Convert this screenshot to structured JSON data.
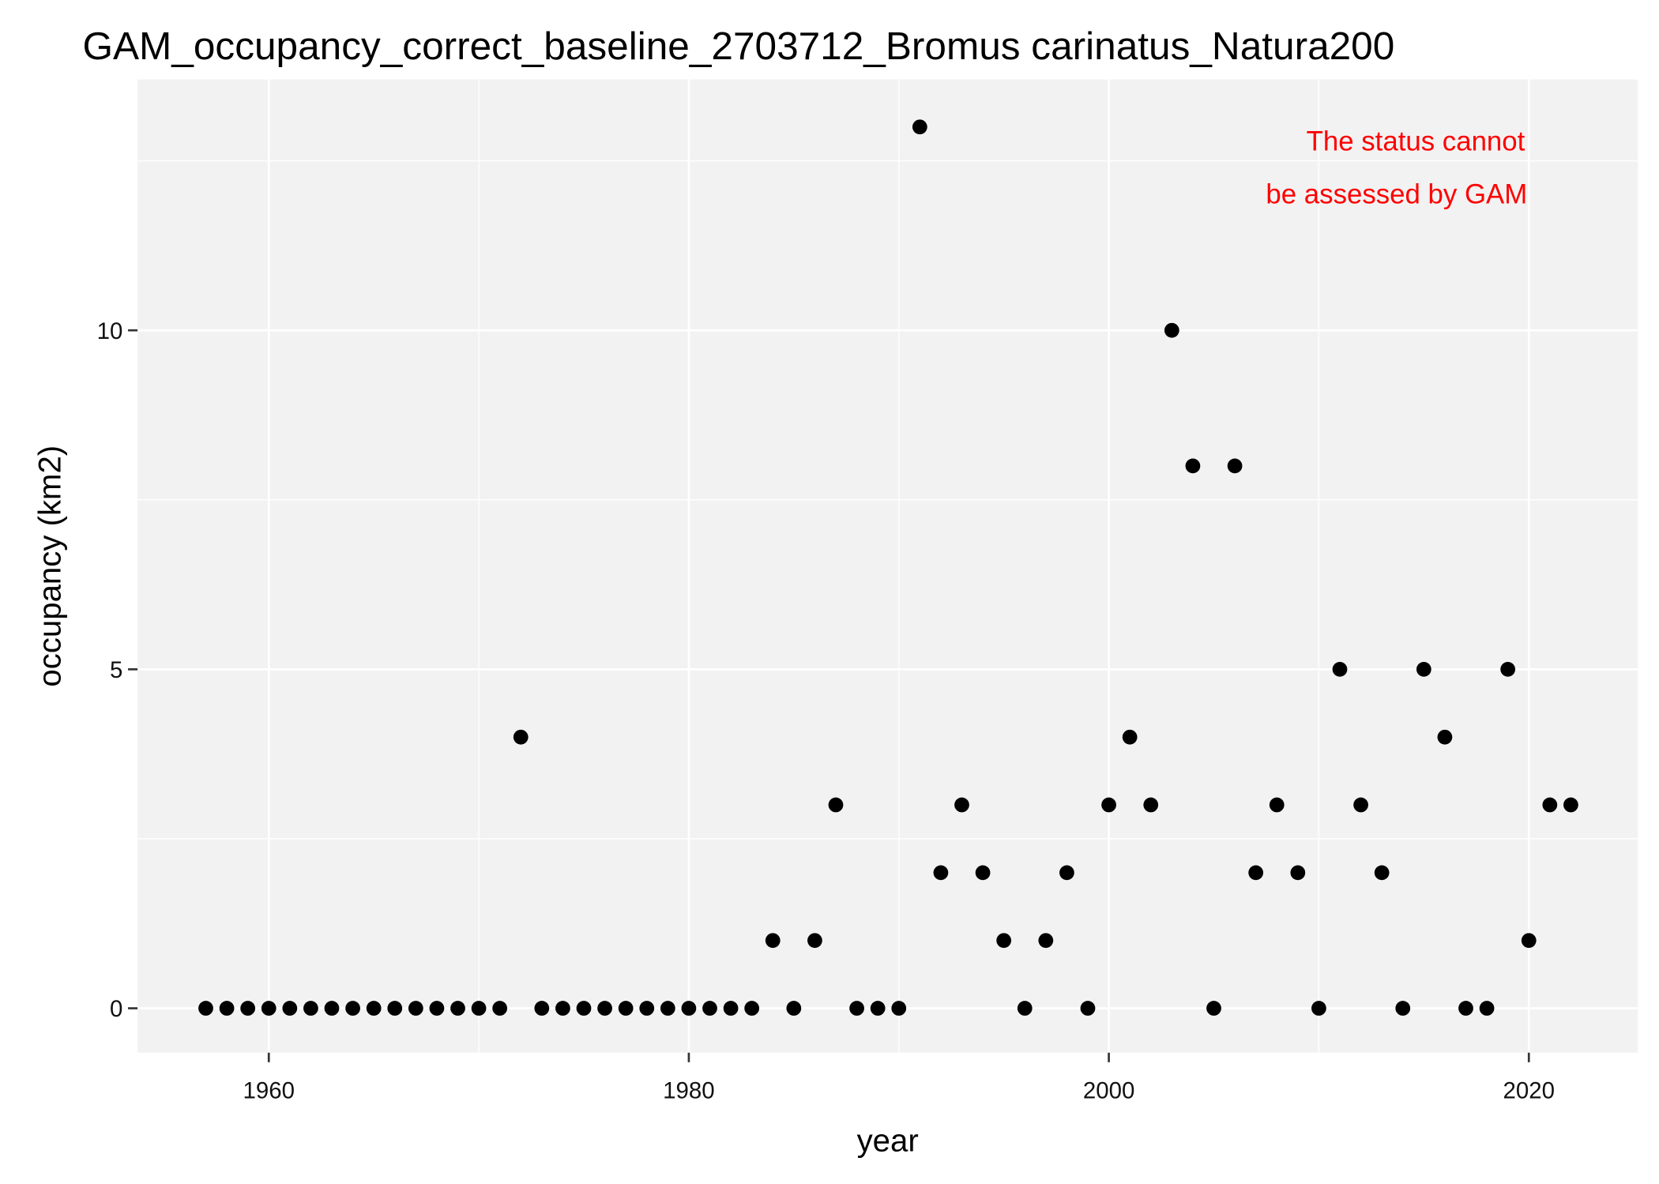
{
  "chart_data": {
    "type": "scatter",
    "title": "GAM_occupancy_correct_baseline_2703712_Bromus carinatus_Natura200",
    "x_label": "year",
    "y_label": "occupancy (km2)",
    "annotation": [
      "The status cannot",
      "be assessed by GAM"
    ],
    "annotation_color": "#ff0000",
    "x": [
      1957,
      1958,
      1959,
      1960,
      1961,
      1962,
      1963,
      1964,
      1965,
      1966,
      1967,
      1968,
      1969,
      1970,
      1971,
      1972,
      1973,
      1974,
      1975,
      1976,
      1977,
      1978,
      1979,
      1980,
      1981,
      1982,
      1983,
      1984,
      1985,
      1986,
      1987,
      1988,
      1989,
      1990,
      1991,
      1992,
      1993,
      1994,
      1995,
      1996,
      1997,
      1998,
      1999,
      2000,
      2001,
      2002,
      2003,
      2004,
      2005,
      2006,
      2007,
      2008,
      2009,
      2010,
      2011,
      2012,
      2013,
      2014,
      2015,
      2016,
      2017,
      2018,
      2019,
      2020,
      2021,
      2022
    ],
    "values": [
      0,
      0,
      0,
      0,
      0,
      0,
      0,
      0,
      0,
      0,
      0,
      0,
      0,
      0,
      0,
      4,
      0,
      0,
      0,
      0,
      0,
      0,
      0,
      0,
      0,
      0,
      0,
      1,
      0,
      1,
      3,
      0,
      0,
      0,
      13,
      2,
      3,
      2,
      1,
      0,
      1,
      2,
      0,
      3,
      4,
      3,
      10,
      8,
      0,
      8,
      2,
      3,
      2,
      0,
      5,
      3,
      2,
      0,
      5,
      4,
      0,
      0,
      5,
      1,
      3,
      3
    ],
    "color": "#000000",
    "xlim": [
      1953.75,
      2025.19
    ],
    "ylim": [
      -0.655,
      13.7
    ],
    "xticks": [
      1960,
      1980,
      2000,
      2020
    ],
    "yticks": [
      0,
      5,
      10
    ],
    "x_minor_grid": [
      1970,
      1990,
      2010
    ],
    "y_minor_grid": [
      2.5,
      7.5,
      12.5
    ],
    "grid": true
  }
}
